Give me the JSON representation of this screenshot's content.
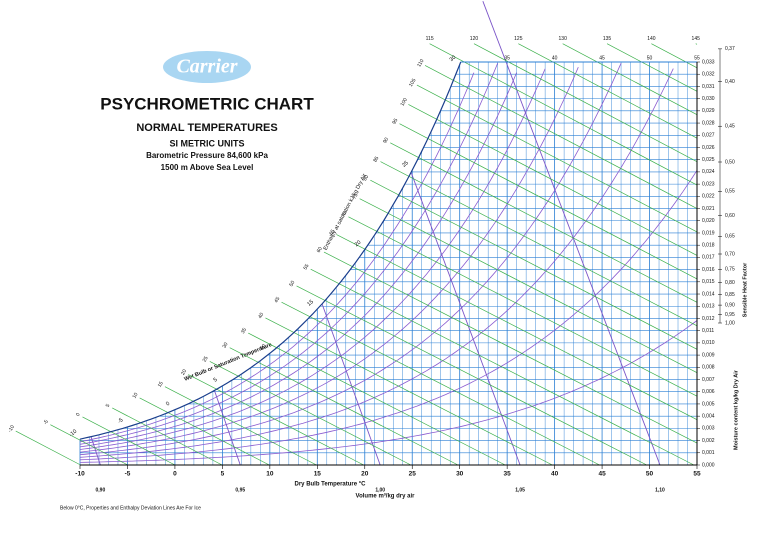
{
  "chart_data": {
    "type": "psychrometric",
    "logo": "Carrier",
    "title": "PSYCHROMETRIC CHART",
    "subtitle": "NORMAL TEMPERATURES",
    "units": "SI METRIC UNITS",
    "pressure": {
      "value": 84.6,
      "label": "Barometric Pressure 84,600 kPa"
    },
    "altitude": "1500 m Above Sea Level",
    "xlabel": "Dry Bulb Temperature   °C",
    "xlim": [
      -10,
      55
    ],
    "xticks": [
      -10,
      -5,
      0,
      5,
      10,
      15,
      20,
      25,
      30,
      35,
      40,
      45,
      50,
      55
    ],
    "xminor": [
      -10,
      -9,
      -8,
      -7,
      -6,
      -5,
      -4,
      -3,
      -2,
      -1,
      0,
      1,
      2,
      3,
      4,
      5,
      6,
      7,
      8,
      9,
      10,
      11,
      12,
      13,
      14,
      15,
      16,
      17,
      18,
      19,
      20,
      21,
      22,
      23,
      24,
      25,
      26,
      27,
      28,
      29,
      30,
      31,
      32,
      33,
      34,
      35,
      36,
      37,
      38,
      39,
      40,
      41,
      42,
      43,
      44,
      45,
      46,
      47,
      48,
      49,
      50,
      51,
      52,
      53,
      54,
      55
    ],
    "ylabel": "Moisture content  kg/kg Dry Air",
    "ylim": [
      0,
      0.033
    ],
    "yticks": [
      {
        "value": 0,
        "label": "0,000"
      },
      {
        "value": 0.001,
        "label": "0,001"
      },
      {
        "value": 0.002,
        "label": "0,002"
      },
      {
        "value": 0.003,
        "label": "0,003"
      },
      {
        "value": 0.004,
        "label": "0,004"
      },
      {
        "value": 0.005,
        "label": "0,005"
      },
      {
        "value": 0.006,
        "label": "0,006"
      },
      {
        "value": 0.007,
        "label": "0,007"
      },
      {
        "value": 0.008,
        "label": "0,008"
      },
      {
        "value": 0.009,
        "label": "0,009"
      },
      {
        "value": 0.01,
        "label": "0,010"
      },
      {
        "value": 0.011,
        "label": "0,011"
      },
      {
        "value": 0.012,
        "label": "0,012"
      },
      {
        "value": 0.013,
        "label": "0,013"
      },
      {
        "value": 0.014,
        "label": "0,014"
      },
      {
        "value": 0.015,
        "label": "0,015"
      },
      {
        "value": 0.016,
        "label": "0,016"
      },
      {
        "value": 0.017,
        "label": "0,017"
      },
      {
        "value": 0.018,
        "label": "0,018"
      },
      {
        "value": 0.019,
        "label": "0,019"
      },
      {
        "value": 0.02,
        "label": "0,020"
      },
      {
        "value": 0.021,
        "label": "0,021"
      },
      {
        "value": 0.022,
        "label": "0,022"
      },
      {
        "value": 0.023,
        "label": "0,023"
      },
      {
        "value": 0.024,
        "label": "0,024"
      },
      {
        "value": 0.025,
        "label": "0,025"
      },
      {
        "value": 0.026,
        "label": "0,026"
      },
      {
        "value": 0.027,
        "label": "0,027"
      },
      {
        "value": 0.028,
        "label": "0,028"
      },
      {
        "value": 0.029,
        "label": "0,029"
      },
      {
        "value": 0.03,
        "label": "0,030"
      },
      {
        "value": 0.031,
        "label": "0,031"
      },
      {
        "value": 0.032,
        "label": "0,032"
      },
      {
        "value": 0.033,
        "label": "0,033"
      }
    ],
    "enthalpy_label": "Enthalpy at saturation  kJ/kg Dry Air",
    "enthalpy_ticks": [
      -10,
      -5,
      0,
      5,
      10,
      15,
      20,
      25,
      30,
      35,
      40,
      45,
      50,
      55,
      60,
      65,
      70,
      75,
      80,
      85,
      90,
      95,
      100,
      105,
      110,
      115,
      120,
      125,
      130,
      135,
      140,
      145
    ],
    "wet_bulb_label": "Wet Bulb or Saturation Temperature",
    "wet_bulb_ticks": [
      -10,
      -5,
      0,
      5,
      10,
      15,
      20,
      25,
      30
    ],
    "volume_label": "Volume m³/kg dry air",
    "volume_ticks": [
      {
        "value": 0.9,
        "label": "0,90"
      },
      {
        "value": 0.95,
        "label": "0,95"
      },
      {
        "value": 1.0,
        "label": "1,00"
      },
      {
        "value": 1.05,
        "label": "1,05"
      },
      {
        "value": 1.1,
        "label": "1,10"
      }
    ],
    "rh_lines": [
      10,
      20,
      30,
      40,
      50,
      60,
      70,
      80,
      90
    ],
    "shf_label": "Sensible Heat Factor",
    "shf_ticks": [
      {
        "value": 0.37,
        "label": "0,37"
      },
      {
        "value": 0.4,
        "label": "0,40"
      },
      {
        "value": 0.45,
        "label": "0,45"
      },
      {
        "value": 0.5,
        "label": "0,50"
      },
      {
        "value": 0.55,
        "label": "0,55"
      },
      {
        "value": 0.6,
        "label": "0,60"
      },
      {
        "value": 0.65,
        "label": "0,65"
      },
      {
        "value": 0.7,
        "label": "0,70"
      },
      {
        "value": 0.75,
        "label": "0,75"
      },
      {
        "value": 0.8,
        "label": "0,80"
      },
      {
        "value": 0.85,
        "label": "0,85"
      },
      {
        "value": 0.9,
        "label": "0,90"
      },
      {
        "value": 0.95,
        "label": "0,95"
      },
      {
        "value": 1.0,
        "label": "1,00"
      }
    ],
    "note": "Below 0°C,  Properties and Enthalpy Deviation Lines Are For Ice",
    "colors": {
      "grid": "#2a7fd4",
      "enthalpy": "#3bb04a",
      "volume": "#7b55c8",
      "rh": "#8a5cd0"
    }
  }
}
